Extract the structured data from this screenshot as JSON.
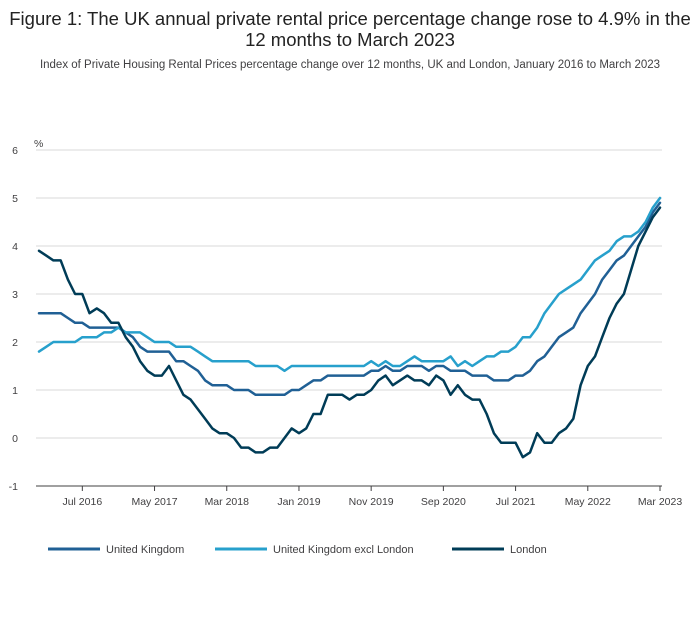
{
  "chart_data": {
    "type": "line",
    "title": "Figure 1: The UK annual private rental price percentage change rose to 4.9% in the 12 months to March 2023",
    "subtitle": "Index of Private Housing Rental Prices percentage change over 12 months, UK and London, January 2016 to March 2023",
    "ylabel": "%",
    "xlabel": "",
    "ylim": [
      -1,
      6
    ],
    "yticks": [
      -1,
      0,
      1,
      2,
      3,
      4,
      5,
      6
    ],
    "x_start": "Jan 2016",
    "x_end": "Mar 2023",
    "x_ticks": [
      {
        "label": "Jul 2016",
        "date": "2016-07"
      },
      {
        "label": "May 2017",
        "date": "2017-05"
      },
      {
        "label": "Mar 2018",
        "date": "2018-03"
      },
      {
        "label": "Jan 2019",
        "date": "2019-01"
      },
      {
        "label": "Nov 2019",
        "date": "2019-11"
      },
      {
        "label": "Sep 2020",
        "date": "2020-09"
      },
      {
        "label": "Jul 2021",
        "date": "2021-07"
      },
      {
        "label": "May 2022",
        "date": "2022-05"
      },
      {
        "label": "Mar 2023",
        "date": "2023-03"
      }
    ],
    "grid": true,
    "legend": "bottom",
    "series": [
      {
        "name": "United Kingdom",
        "color": "#206095",
        "values": [
          2.6,
          2.6,
          2.6,
          2.6,
          2.5,
          2.4,
          2.4,
          2.3,
          2.3,
          2.3,
          2.3,
          2.3,
          2.2,
          2.1,
          1.9,
          1.8,
          1.8,
          1.8,
          1.8,
          1.6,
          1.6,
          1.5,
          1.4,
          1.2,
          1.1,
          1.1,
          1.1,
          1.0,
          1.0,
          1.0,
          0.9,
          0.9,
          0.9,
          0.9,
          0.9,
          1.0,
          1.0,
          1.1,
          1.2,
          1.2,
          1.3,
          1.3,
          1.3,
          1.3,
          1.3,
          1.3,
          1.4,
          1.4,
          1.5,
          1.4,
          1.4,
          1.5,
          1.5,
          1.5,
          1.4,
          1.5,
          1.5,
          1.4,
          1.4,
          1.4,
          1.3,
          1.3,
          1.3,
          1.2,
          1.2,
          1.2,
          1.3,
          1.3,
          1.4,
          1.6,
          1.7,
          1.9,
          2.1,
          2.2,
          2.3,
          2.6,
          2.8,
          3.0,
          3.3,
          3.5,
          3.7,
          3.8,
          4.0,
          4.2,
          4.4,
          4.7,
          4.9
        ]
      },
      {
        "name": "United Kingdom excl London",
        "color": "#27a0cc",
        "values": [
          1.8,
          1.9,
          2.0,
          2.0,
          2.0,
          2.0,
          2.1,
          2.1,
          2.1,
          2.2,
          2.2,
          2.3,
          2.2,
          2.2,
          2.2,
          2.1,
          2.0,
          2.0,
          2.0,
          1.9,
          1.9,
          1.9,
          1.8,
          1.7,
          1.6,
          1.6,
          1.6,
          1.6,
          1.6,
          1.6,
          1.5,
          1.5,
          1.5,
          1.5,
          1.4,
          1.5,
          1.5,
          1.5,
          1.5,
          1.5,
          1.5,
          1.5,
          1.5,
          1.5,
          1.5,
          1.5,
          1.6,
          1.5,
          1.6,
          1.5,
          1.5,
          1.6,
          1.7,
          1.6,
          1.6,
          1.6,
          1.6,
          1.7,
          1.5,
          1.6,
          1.5,
          1.6,
          1.7,
          1.7,
          1.8,
          1.8,
          1.9,
          2.1,
          2.1,
          2.3,
          2.6,
          2.8,
          3.0,
          3.1,
          3.2,
          3.3,
          3.5,
          3.7,
          3.8,
          3.9,
          4.1,
          4.2,
          4.2,
          4.3,
          4.5,
          4.8,
          5.0
        ]
      },
      {
        "name": "London",
        "color": "#003c57",
        "values": [
          3.9,
          3.8,
          3.7,
          3.7,
          3.3,
          3.0,
          3.0,
          2.6,
          2.7,
          2.6,
          2.4,
          2.4,
          2.1,
          1.9,
          1.6,
          1.4,
          1.3,
          1.3,
          1.5,
          1.2,
          0.9,
          0.8,
          0.6,
          0.4,
          0.2,
          0.1,
          0.1,
          0.0,
          -0.2,
          -0.2,
          -0.3,
          -0.3,
          -0.2,
          -0.2,
          0.0,
          0.2,
          0.1,
          0.2,
          0.5,
          0.5,
          0.9,
          0.9,
          0.9,
          0.8,
          0.9,
          0.9,
          1.0,
          1.2,
          1.3,
          1.1,
          1.2,
          1.3,
          1.2,
          1.2,
          1.1,
          1.3,
          1.2,
          0.9,
          1.1,
          0.9,
          0.8,
          0.8,
          0.5,
          0.1,
          -0.1,
          -0.1,
          -0.1,
          -0.4,
          -0.3,
          0.1,
          -0.1,
          -0.1,
          0.1,
          0.2,
          0.4,
          1.1,
          1.5,
          1.7,
          2.1,
          2.5,
          2.8,
          3.0,
          3.5,
          4.0,
          4.3,
          4.6,
          4.8
        ]
      }
    ]
  }
}
